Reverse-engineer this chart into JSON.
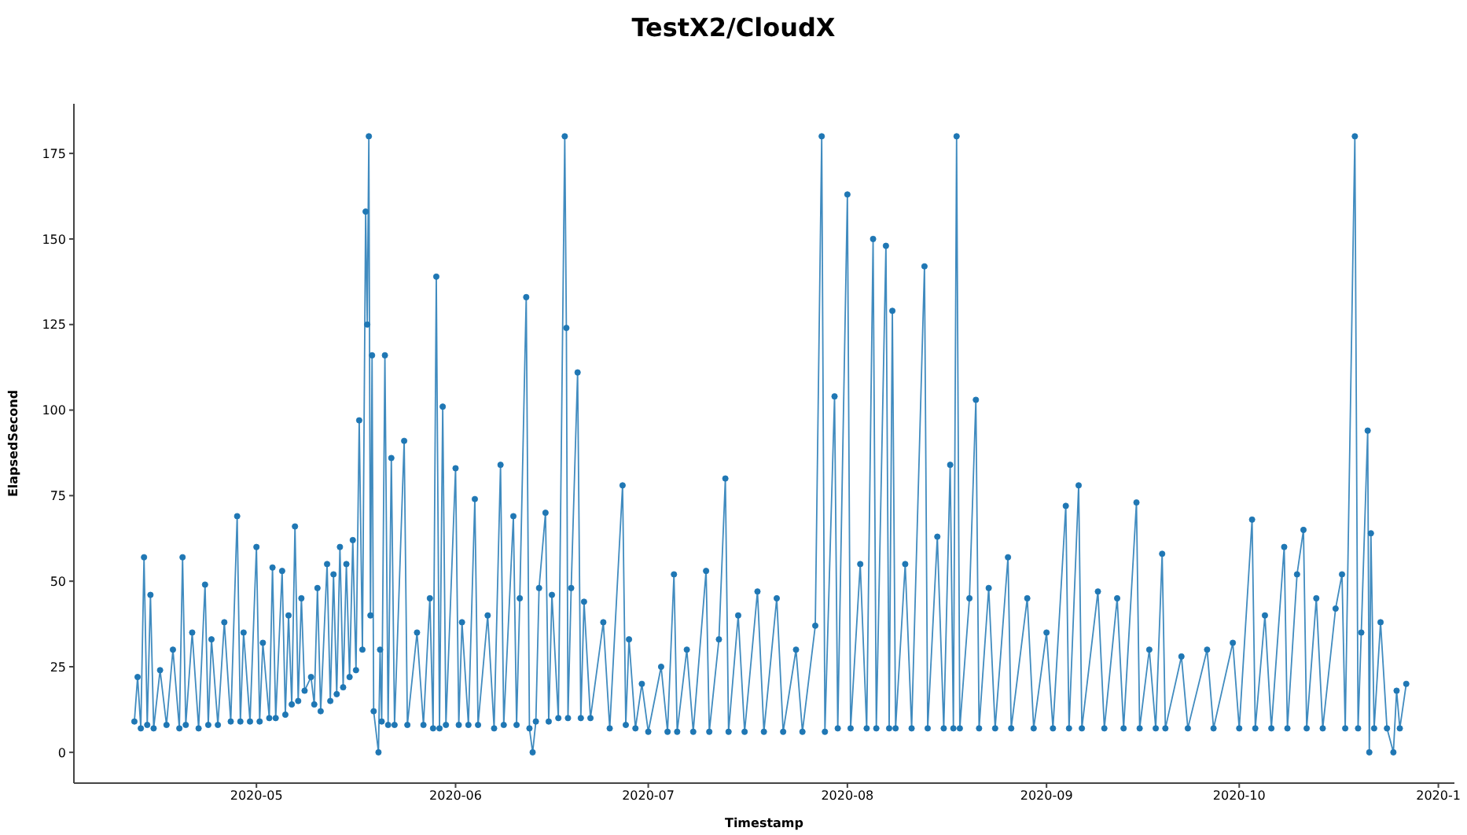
{
  "chart_data": {
    "type": "line",
    "title": "TestX2/CloudX",
    "xlabel": "Timestamp",
    "ylabel": "ElapsedSecond",
    "marker": "circle",
    "xlim": [
      "2020-04-02T14:00",
      "2020-11-03T12:00"
    ],
    "xticks": [
      "2020-05",
      "2020-06",
      "2020-07",
      "2020-08",
      "2020-09",
      "2020-10",
      {
        "value": "2020-11",
        "label": "2020-1"
      }
    ],
    "ylim": [
      -9,
      189.5
    ],
    "yticks": [
      0,
      25,
      50,
      75,
      100,
      125,
      150,
      175
    ],
    "x": [
      "2020-04-12",
      "2020-04-12T12:00",
      "2020-04-13",
      "2020-04-13T12:00",
      "2020-04-14",
      "2020-04-14T12:00",
      "2020-04-15",
      "2020-04-16",
      "2020-04-17",
      "2020-04-18",
      "2020-04-19",
      "2020-04-19T12:00",
      "2020-04-20",
      "2020-04-21",
      "2020-04-22",
      "2020-04-23",
      "2020-04-23T12:00",
      "2020-04-24",
      "2020-04-25",
      "2020-04-26",
      "2020-04-27",
      "2020-04-28",
      "2020-04-28T12:00",
      "2020-04-29",
      "2020-04-30",
      "2020-05-01",
      "2020-05-01T12:00",
      "2020-05-02",
      "2020-05-03",
      "2020-05-03T12:00",
      "2020-05-04",
      "2020-05-05",
      "2020-05-05T12:00",
      "2020-05-06",
      "2020-05-06T12:00",
      "2020-05-07",
      "2020-05-07T12:00",
      "2020-05-08",
      "2020-05-08T12:00",
      "2020-05-09T12:00",
      "2020-05-10",
      "2020-05-10T12:00",
      "2020-05-11",
      "2020-05-12",
      "2020-05-12T12:00",
      "2020-05-13",
      "2020-05-13T12:00",
      "2020-05-14",
      "2020-05-14T12:00",
      "2020-05-15",
      "2020-05-15T12:00",
      "2020-05-16",
      "2020-05-16T12:00",
      "2020-05-17",
      "2020-05-17T12:00",
      "2020-05-18",
      "2020-05-18T06:00",
      "2020-05-18T12:00",
      "2020-05-18T18:00",
      "2020-05-19",
      "2020-05-19T06:00",
      "2020-05-20",
      "2020-05-20T06:00",
      "2020-05-20T12:00",
      "2020-05-21",
      "2020-05-21T12:00",
      "2020-05-22",
      "2020-05-22T12:00",
      "2020-05-24",
      "2020-05-24T12:00",
      "2020-05-26",
      "2020-05-27",
      "2020-05-28",
      "2020-05-28T12:00",
      "2020-05-29",
      "2020-05-29T12:00",
      "2020-05-30",
      "2020-05-30T12:00",
      "2020-06-01",
      "2020-06-01T12:00",
      "2020-06-02",
      "2020-06-03",
      "2020-06-04",
      "2020-06-04T12:00",
      "2020-06-06",
      "2020-06-07",
      "2020-06-08",
      "2020-06-08T12:00",
      "2020-06-10",
      "2020-06-10T12:00",
      "2020-06-11",
      "2020-06-12",
      "2020-06-12T12:00",
      "2020-06-13",
      "2020-06-13T12:00",
      "2020-06-14",
      "2020-06-15",
      "2020-06-15T12:00",
      "2020-06-16",
      "2020-06-17",
      "2020-06-18",
      "2020-06-18T06:00",
      "2020-06-18T12:00",
      "2020-06-19",
      "2020-06-20",
      "2020-06-20T12:00",
      "2020-06-21",
      "2020-06-22",
      "2020-06-24",
      "2020-06-25",
      "2020-06-27",
      "2020-06-27T12:00",
      "2020-06-28",
      "2020-06-29",
      "2020-06-30",
      "2020-07-01",
      "2020-07-03",
      "2020-07-04",
      "2020-07-05",
      "2020-07-05T12:00",
      "2020-07-07",
      "2020-07-08",
      "2020-07-10",
      "2020-07-10T12:00",
      "2020-07-12",
      "2020-07-13",
      "2020-07-13T12:00",
      "2020-07-15",
      "2020-07-16",
      "2020-07-18",
      "2020-07-19",
      "2020-07-21",
      "2020-07-22",
      "2020-07-24",
      "2020-07-25",
      "2020-07-27",
      "2020-07-28",
      "2020-07-28T12:00",
      "2020-07-30",
      "2020-07-30T12:00",
      "2020-08-01",
      "2020-08-01T12:00",
      "2020-08-03",
      "2020-08-04",
      "2020-08-05",
      "2020-08-05T12:00",
      "2020-08-07",
      "2020-08-07T12:00",
      "2020-08-08",
      "2020-08-08T12:00",
      "2020-08-10",
      "2020-08-11",
      "2020-08-13",
      "2020-08-13T12:00",
      "2020-08-15",
      "2020-08-16",
      "2020-08-17",
      "2020-08-17T12:00",
      "2020-08-18",
      "2020-08-18T12:00",
      "2020-08-20",
      "2020-08-21",
      "2020-08-21T12:00",
      "2020-08-23",
      "2020-08-24",
      "2020-08-26",
      "2020-08-26T12:00",
      "2020-08-29",
      "2020-08-30",
      "2020-09-01",
      "2020-09-02",
      "2020-09-04",
      "2020-09-04T12:00",
      "2020-09-06",
      "2020-09-06T12:00",
      "2020-09-09",
      "2020-09-10",
      "2020-09-12",
      "2020-09-13",
      "2020-09-15",
      "2020-09-15T12:00",
      "2020-09-17",
      "2020-09-18",
      "2020-09-19",
      "2020-09-19T12:00",
      "2020-09-22",
      "2020-09-23",
      "2020-09-26",
      "2020-09-27",
      "2020-09-30",
      "2020-10-01",
      "2020-10-03",
      "2020-10-03T12:00",
      "2020-10-05",
      "2020-10-06",
      "2020-10-08",
      "2020-10-08T12:00",
      "2020-10-10",
      "2020-10-11",
      "2020-10-11T12:00",
      "2020-10-13",
      "2020-10-14",
      "2020-10-16",
      "2020-10-17",
      "2020-10-17T12:00",
      "2020-10-19",
      "2020-10-19T12:00",
      "2020-10-20",
      "2020-10-21",
      "2020-10-21T06:00",
      "2020-10-21T12:00",
      "2020-10-22",
      "2020-10-23",
      "2020-10-24",
      "2020-10-25",
      "2020-10-25T12:00",
      "2020-10-26",
      "2020-10-27"
    ],
    "series": [
      {
        "color": "#1f77b4",
        "values": [
          9,
          22,
          7,
          57,
          8,
          46,
          7,
          24,
          8,
          30,
          7,
          57,
          8,
          35,
          7,
          49,
          8,
          33,
          8,
          38,
          9,
          69,
          9,
          35,
          9,
          60,
          9,
          32,
          10,
          54,
          10,
          53,
          11,
          40,
          14,
          66,
          15,
          45,
          18,
          22,
          14,
          48,
          12,
          55,
          15,
          52,
          17,
          60,
          19,
          55,
          22,
          62,
          24,
          97,
          30,
          158,
          125,
          180,
          40,
          116,
          12,
          0,
          30,
          9,
          116,
          8,
          86,
          8,
          91,
          8,
          35,
          8,
          45,
          7,
          139,
          7,
          101,
          8,
          83,
          8,
          38,
          8,
          74,
          8,
          40,
          7,
          84,
          8,
          69,
          8,
          45,
          133,
          7,
          0,
          9,
          48,
          70,
          9,
          46,
          10,
          180,
          124,
          10,
          48,
          111,
          10,
          44,
          10,
          38,
          7,
          78,
          8,
          33,
          7,
          20,
          6,
          25,
          6,
          52,
          6,
          30,
          6,
          53,
          6,
          33,
          80,
          6,
          40,
          6,
          47,
          6,
          45,
          6,
          30,
          6,
          37,
          180,
          6,
          104,
          7,
          163,
          7,
          55,
          7,
          150,
          7,
          148,
          7,
          129,
          7,
          55,
          7,
          142,
          7,
          63,
          7,
          84,
          7,
          180,
          7,
          45,
          103,
          7,
          48,
          7,
          57,
          7,
          45,
          7,
          35,
          7,
          72,
          7,
          78,
          7,
          47,
          7,
          45,
          7,
          73,
          7,
          30,
          7,
          58,
          7,
          28,
          7,
          30,
          7,
          32,
          7,
          68,
          7,
          40,
          7,
          60,
          7,
          52,
          65,
          7,
          45,
          7,
          42,
          52,
          7,
          180,
          7,
          35,
          94,
          0,
          64,
          7,
          38,
          7,
          0,
          18,
          7,
          20
        ]
      }
    ]
  }
}
